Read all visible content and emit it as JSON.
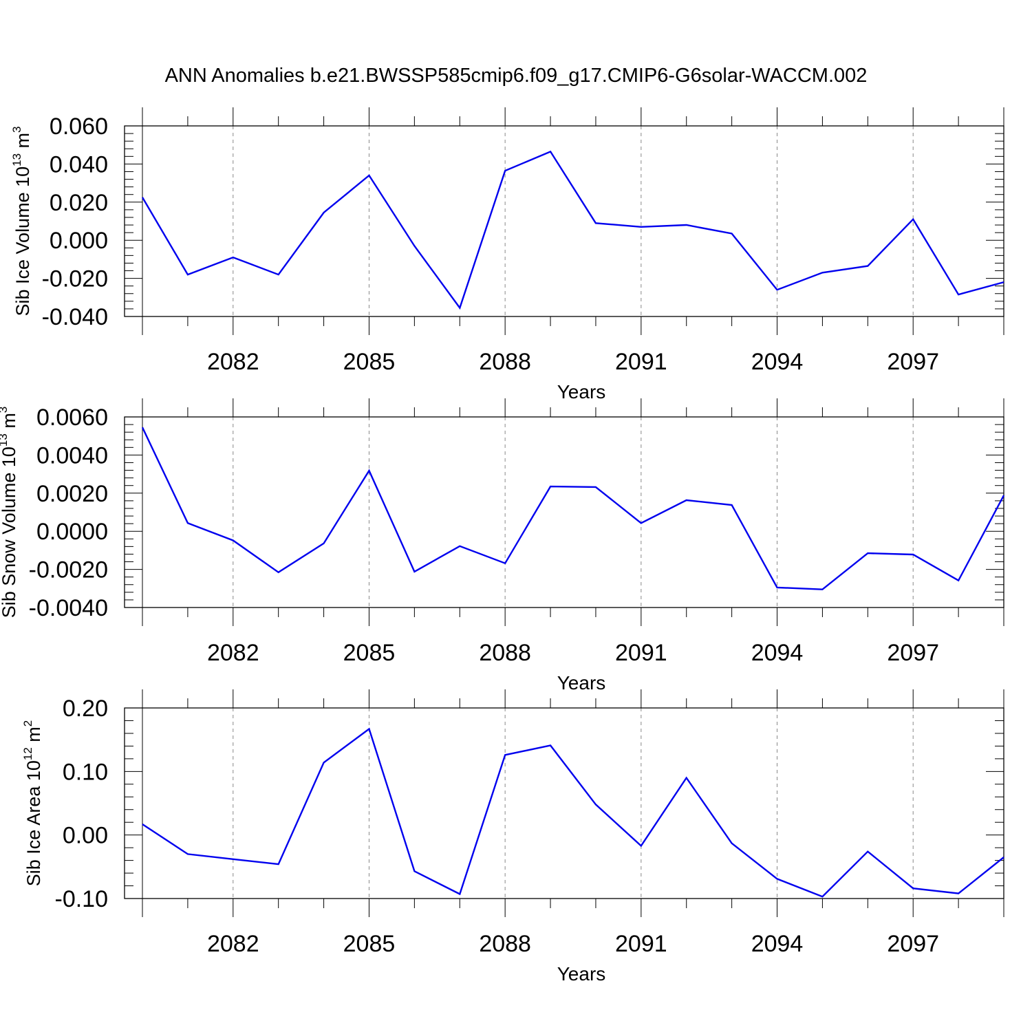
{
  "title": "ANN Anomalies b.e21.BWSSP585cmip6.f09_g17.CMIP6-G6solar-WACCM.002",
  "chart_data": [
    {
      "type": "line",
      "ylabel": {
        "text": "Sib Ice Volume 10",
        "exp": "13",
        "unit": " m",
        "unit_exp": "3"
      },
      "xlabel": "Years",
      "xlim": [
        2080,
        2099
      ],
      "ylim": [
        -0.04,
        0.06
      ],
      "yticks": [
        -0.04,
        -0.02,
        0.0,
        0.02,
        0.04,
        0.06
      ],
      "ytick_labels": [
        "-0.040",
        "-0.020",
        "0.000",
        "0.020",
        "0.040",
        "0.060"
      ],
      "xticks": [
        2082,
        2085,
        2088,
        2091,
        2094,
        2097
      ],
      "xtick_labels": [
        "2082",
        "2085",
        "2088",
        "2091",
        "2094",
        "2097"
      ],
      "grid": "dashed vertical lines at labeled years",
      "line_color": "#0000ee",
      "x": [
        2080,
        2081,
        2082,
        2083,
        2084,
        2085,
        2086,
        2087,
        2088,
        2089,
        2090,
        2091,
        2092,
        2093,
        2094,
        2095,
        2096,
        2097,
        2098,
        2099
      ],
      "values": [
        0.0225,
        -0.018,
        -0.009,
        -0.018,
        0.0145,
        0.034,
        -0.003,
        -0.0355,
        0.0365,
        0.0465,
        0.009,
        0.007,
        0.008,
        0.0035,
        -0.026,
        -0.017,
        -0.0135,
        0.011,
        -0.0285,
        -0.022
      ]
    },
    {
      "type": "line",
      "ylabel": {
        "text": "Sib Snow Volume 10",
        "exp": "13",
        "unit": " m",
        "unit_exp": "3"
      },
      "xlabel": "Years",
      "xlim": [
        2080,
        2099
      ],
      "ylim": [
        -0.004,
        0.006
      ],
      "yticks": [
        -0.004,
        -0.002,
        0.0,
        0.002,
        0.004,
        0.006
      ],
      "ytick_labels": [
        "-0.0040",
        "-0.0020",
        "0.0000",
        "0.0020",
        "0.0040",
        "0.0060"
      ],
      "xticks": [
        2082,
        2085,
        2088,
        2091,
        2094,
        2097
      ],
      "xtick_labels": [
        "2082",
        "2085",
        "2088",
        "2091",
        "2094",
        "2097"
      ],
      "grid": "dashed vertical lines at labeled years",
      "line_color": "#0000ee",
      "x": [
        2080,
        2081,
        2082,
        2083,
        2084,
        2085,
        2086,
        2087,
        2088,
        2089,
        2090,
        2091,
        2092,
        2093,
        2094,
        2095,
        2096,
        2097,
        2098,
        2099
      ],
      "values": [
        0.00545,
        0.00043,
        -0.00048,
        -0.00215,
        -0.00063,
        0.00318,
        -0.00212,
        -0.00078,
        -0.00168,
        0.00235,
        0.00232,
        0.00043,
        0.00163,
        0.00138,
        -0.00295,
        -0.00305,
        -0.00115,
        -0.00122,
        -0.00258,
        0.00188
      ]
    },
    {
      "type": "line",
      "ylabel": {
        "text": "Sib Ice Area 10",
        "exp": "12",
        "unit": " m",
        "unit_exp": "2"
      },
      "xlabel": "Years",
      "xlim": [
        2080,
        2099
      ],
      "ylim": [
        -0.1,
        0.2
      ],
      "yticks": [
        -0.1,
        0.0,
        0.1,
        0.2
      ],
      "ytick_labels": [
        "-0.10",
        "0.00",
        "0.10",
        "0.20"
      ],
      "xticks": [
        2082,
        2085,
        2088,
        2091,
        2094,
        2097
      ],
      "xtick_labels": [
        "2082",
        "2085",
        "2088",
        "2091",
        "2094",
        "2097"
      ],
      "grid": "dashed vertical lines at labeled years",
      "line_color": "#0000ee",
      "x": [
        2080,
        2081,
        2082,
        2083,
        2084,
        2085,
        2086,
        2087,
        2088,
        2089,
        2090,
        2091,
        2092,
        2093,
        2094,
        2095,
        2096,
        2097,
        2098,
        2099
      ],
      "values": [
        0.017,
        -0.03,
        -0.038,
        -0.046,
        0.114,
        0.167,
        -0.057,
        -0.093,
        0.126,
        0.141,
        0.048,
        -0.017,
        0.09,
        -0.013,
        -0.069,
        -0.097,
        -0.026,
        -0.084,
        -0.092,
        -0.035
      ]
    }
  ]
}
